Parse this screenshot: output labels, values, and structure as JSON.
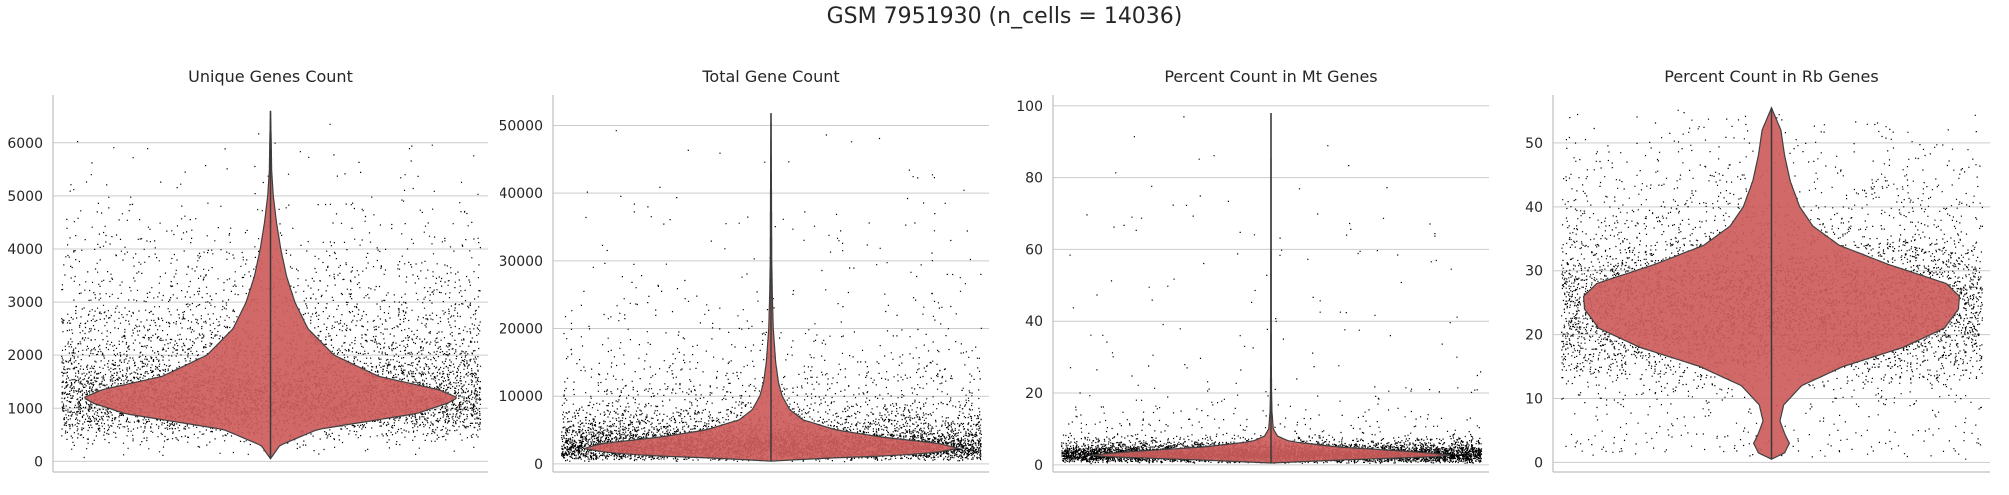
{
  "suptitle": "GSM 7951930 (n_cells = 14036)",
  "style": {
    "violin_fill": "#cd5c5c",
    "violin_edge": "#404040",
    "point_color": "#000000",
    "grid_color": "#cccccc",
    "spine_color": "#bfbfbf"
  },
  "chart_data": [
    {
      "type": "violin",
      "title": "Unique Genes Count",
      "ylim": [
        -200,
        6900
      ],
      "yticks": [
        0,
        1000,
        2000,
        3000,
        4000,
        5000,
        6000
      ],
      "tick_labels": [
        "0",
        "1000",
        "2000",
        "3000",
        "4000",
        "5000",
        "6000"
      ],
      "grid": true,
      "jitter": true,
      "n_points": 14036,
      "data_range": [
        50,
        6600
      ],
      "density_profile": [
        [
          50,
          0
        ],
        [
          300,
          0.05
        ],
        [
          600,
          0.25
        ],
        [
          900,
          0.78
        ],
        [
          1100,
          0.95
        ],
        [
          1200,
          1.0
        ],
        [
          1350,
          0.9
        ],
        [
          1600,
          0.58
        ],
        [
          2000,
          0.34
        ],
        [
          2500,
          0.2
        ],
        [
          3000,
          0.13
        ],
        [
          3500,
          0.085
        ],
        [
          4000,
          0.055
        ],
        [
          4500,
          0.032
        ],
        [
          5000,
          0.015
        ],
        [
          5500,
          0.006
        ],
        [
          6000,
          0.004
        ],
        [
          6600,
          0
        ]
      ],
      "inner_box": {
        "q1": 1000,
        "median": 1200,
        "q3": 1550,
        "whisker_low": 50,
        "whisker_high": 6600
      }
    },
    {
      "type": "violin",
      "title": "Total Gene Count",
      "ylim": [
        -1200,
        54500
      ],
      "yticks": [
        0,
        10000,
        20000,
        30000,
        40000,
        50000
      ],
      "tick_labels": [
        "0",
        "10000",
        "20000",
        "30000",
        "40000",
        "50000"
      ],
      "grid": true,
      "jitter": true,
      "n_points": 14036,
      "data_range": [
        400,
        51800
      ],
      "density_profile": [
        [
          400,
          0
        ],
        [
          800,
          0.25
        ],
        [
          1200,
          0.65
        ],
        [
          1700,
          0.88
        ],
        [
          2300,
          1.0
        ],
        [
          3000,
          0.9
        ],
        [
          4000,
          0.58
        ],
        [
          5000,
          0.35
        ],
        [
          6500,
          0.17
        ],
        [
          8000,
          0.1
        ],
        [
          10000,
          0.06
        ],
        [
          12000,
          0.04
        ],
        [
          15000,
          0.025
        ],
        [
          20000,
          0.012
        ],
        [
          25000,
          0.007
        ],
        [
          30000,
          0.004
        ],
        [
          40000,
          0.0025
        ],
        [
          51800,
          0
        ]
      ],
      "inner_box": {
        "q1": 2000,
        "median": 2700,
        "q3": 3800,
        "whisker_low": 400,
        "whisker_high": 51800
      }
    },
    {
      "type": "violin",
      "title": "Percent Count in Mt Genes",
      "ylim": [
        -2,
        103
      ],
      "yticks": [
        0,
        20,
        40,
        60,
        80,
        100
      ],
      "tick_labels": [
        "0",
        "20",
        "40",
        "60",
        "80",
        "100"
      ],
      "grid": true,
      "jitter": true,
      "n_points": 14036,
      "data_range": [
        0.5,
        98
      ],
      "density_profile": [
        [
          0.5,
          0
        ],
        [
          1.5,
          0.45
        ],
        [
          2.5,
          1.0
        ],
        [
          3.5,
          0.8
        ],
        [
          5,
          0.35
        ],
        [
          6.5,
          0.1
        ],
        [
          8,
          0.035
        ],
        [
          10,
          0.012
        ],
        [
          15,
          0.005
        ],
        [
          20,
          0.003
        ],
        [
          30,
          0.0015
        ],
        [
          50,
          0.001
        ],
        [
          98,
          0
        ]
      ],
      "inner_box": {
        "q1": 2,
        "median": 2.8,
        "q3": 3.8,
        "whisker_low": 0.5,
        "whisker_high": 98
      }
    },
    {
      "type": "violin",
      "title": "Percent Count in Rb Genes",
      "ylim": [
        -1.5,
        57.5
      ],
      "yticks": [
        0,
        10,
        20,
        30,
        40,
        50
      ],
      "tick_labels": [
        "0",
        "10",
        "20",
        "30",
        "40",
        "50"
      ],
      "grid": true,
      "jitter": true,
      "n_points": 14036,
      "data_range": [
        0.5,
        55.5
      ],
      "density_profile": [
        [
          0.5,
          0
        ],
        [
          1.5,
          0.07
        ],
        [
          3,
          0.095
        ],
        [
          4.5,
          0.07
        ],
        [
          6.5,
          0.045
        ],
        [
          9,
          0.065
        ],
        [
          12,
          0.16
        ],
        [
          15,
          0.38
        ],
        [
          18,
          0.7
        ],
        [
          21,
          0.92
        ],
        [
          24,
          0.995
        ],
        [
          26,
          1.0
        ],
        [
          28,
          0.93
        ],
        [
          31,
          0.62
        ],
        [
          34,
          0.36
        ],
        [
          37,
          0.22
        ],
        [
          40,
          0.15
        ],
        [
          44,
          0.1
        ],
        [
          48,
          0.07
        ],
        [
          52,
          0.05
        ],
        [
          55.5,
          0
        ]
      ],
      "inner_box": {
        "q1": 21,
        "median": 25.5,
        "q3": 30,
        "whisker_low": 0.5,
        "whisker_high": 55.5
      }
    }
  ]
}
